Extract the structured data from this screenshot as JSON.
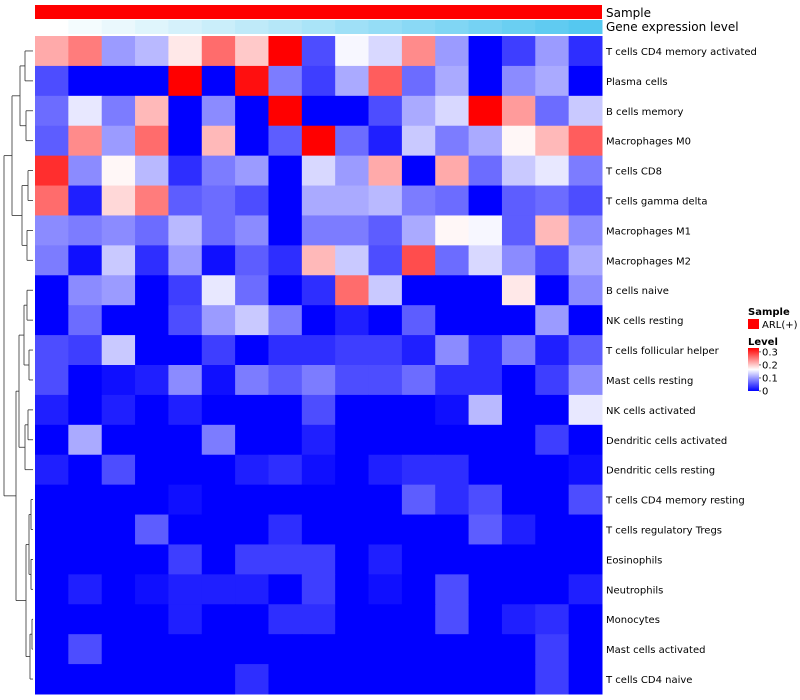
{
  "chart_data": {
    "type": "heatmap",
    "title": "",
    "xlabel": "",
    "ylabel": "",
    "annotations": {
      "sample_track": {
        "label": "Sample",
        "color": "#ff0000"
      },
      "expression_track": {
        "label": "Gene expression level",
        "gradient": [
          "#ffffff",
          "#55c8f0"
        ]
      }
    },
    "rows": [
      "T cells CD4 memory activated",
      "Plasma cells",
      "B cells memory",
      "Macrophages M0",
      "T cells CD8",
      "T cells gamma delta",
      "Macrophages M1",
      "Macrophages M2",
      "B cells naive",
      "NK cells resting",
      "T cells follicular helper",
      "Mast cells resting",
      "NK cells activated",
      "Dendritic cells activated",
      "Dendritic cells resting",
      "T cells CD4 memory resting",
      "T cells regulatory  Tregs",
      "Eosinophils",
      "Neutrophils",
      "Monocytes",
      "Mast cells activated",
      "T cells CD4 naive"
    ],
    "values": [
      [
        0.22,
        0.25,
        0.1,
        0.12,
        0.18,
        0.26,
        0.2,
        0.33,
        0.05,
        0.16,
        0.14,
        0.24,
        0.1,
        0.0,
        0.04,
        0.1,
        0.03
      ],
      [
        0.05,
        0.0,
        0.0,
        0.0,
        0.33,
        0.0,
        0.32,
        0.08,
        0.04,
        0.11,
        0.27,
        0.07,
        0.11,
        0.0,
        0.09,
        0.11,
        0.0
      ],
      [
        0.07,
        0.15,
        0.08,
        0.21,
        0.0,
        0.09,
        0.0,
        0.33,
        0.0,
        0.0,
        0.05,
        0.11,
        0.14,
        0.33,
        0.23,
        0.07,
        0.13
      ],
      [
        0.06,
        0.24,
        0.1,
        0.26,
        0.0,
        0.21,
        0.0,
        0.06,
        0.33,
        0.07,
        0.02,
        0.13,
        0.08,
        0.11,
        0.17,
        0.21,
        0.27
      ],
      [
        0.3,
        0.09,
        0.17,
        0.12,
        0.03,
        0.08,
        0.1,
        0.0,
        0.14,
        0.1,
        0.22,
        0.0,
        0.22,
        0.07,
        0.13,
        0.15,
        0.08
      ],
      [
        0.26,
        0.02,
        0.19,
        0.25,
        0.06,
        0.07,
        0.05,
        0.0,
        0.11,
        0.11,
        0.12,
        0.08,
        0.07,
        0.0,
        0.06,
        0.07,
        0.05
      ],
      [
        0.09,
        0.08,
        0.09,
        0.07,
        0.12,
        0.07,
        0.09,
        0.0,
        0.08,
        0.08,
        0.06,
        0.11,
        0.17,
        0.16,
        0.06,
        0.21,
        0.09
      ],
      [
        0.08,
        0.01,
        0.13,
        0.03,
        0.1,
        0.01,
        0.06,
        0.03,
        0.21,
        0.13,
        0.05,
        0.28,
        0.07,
        0.14,
        0.09,
        0.05,
        0.11
      ],
      [
        0.0,
        0.09,
        0.1,
        0.0,
        0.04,
        0.15,
        0.07,
        0.0,
        0.03,
        0.26,
        0.13,
        0.0,
        0.0,
        0.0,
        0.18,
        0.0,
        0.09
      ],
      [
        0.0,
        0.07,
        0.0,
        0.0,
        0.05,
        0.1,
        0.13,
        0.08,
        0.0,
        0.02,
        0.0,
        0.06,
        0.0,
        0.0,
        0.0,
        0.1,
        0.0
      ],
      [
        0.05,
        0.04,
        0.13,
        0.0,
        0.0,
        0.04,
        0.0,
        0.03,
        0.03,
        0.04,
        0.04,
        0.02,
        0.09,
        0.03,
        0.08,
        0.02,
        0.06
      ],
      [
        0.05,
        0.0,
        0.01,
        0.02,
        0.09,
        0.01,
        0.08,
        0.06,
        0.08,
        0.05,
        0.05,
        0.07,
        0.03,
        0.03,
        0.0,
        0.04,
        0.09
      ],
      [
        0.02,
        0.0,
        0.02,
        0.0,
        0.02,
        0.0,
        0.0,
        0.0,
        0.05,
        0.0,
        0.0,
        0.0,
        0.01,
        0.12,
        0.0,
        0.0,
        0.15
      ],
      [
        0.0,
        0.11,
        0.0,
        0.0,
        0.0,
        0.08,
        0.0,
        0.0,
        0.02,
        0.0,
        0.0,
        0.0,
        0.0,
        0.0,
        0.0,
        0.04,
        0.0
      ],
      [
        0.02,
        0.0,
        0.05,
        0.0,
        0.0,
        0.0,
        0.02,
        0.03,
        0.01,
        0.0,
        0.02,
        0.03,
        0.03,
        0.0,
        0.0,
        0.0,
        0.01
      ],
      [
        0.0,
        0.0,
        0.0,
        0.0,
        0.01,
        0.0,
        0.0,
        0.0,
        0.0,
        0.0,
        0.0,
        0.06,
        0.03,
        0.05,
        0.0,
        0.0,
        0.05
      ],
      [
        0.0,
        0.0,
        0.0,
        0.06,
        0.0,
        0.0,
        0.0,
        0.03,
        0.0,
        0.0,
        0.0,
        0.0,
        0.0,
        0.06,
        0.02,
        0.0,
        0.0
      ],
      [
        0.0,
        0.0,
        0.0,
        0.0,
        0.04,
        0.0,
        0.04,
        0.04,
        0.04,
        0.0,
        0.02,
        0.0,
        0.0,
        0.0,
        0.0,
        0.0,
        0.0
      ],
      [
        0.0,
        0.02,
        0.0,
        0.01,
        0.02,
        0.02,
        0.02,
        0.0,
        0.04,
        0.0,
        0.01,
        0.0,
        0.05,
        0.0,
        0.0,
        0.0,
        0.02
      ],
      [
        0.0,
        0.0,
        0.0,
        0.0,
        0.02,
        0.0,
        0.0,
        0.03,
        0.03,
        0.0,
        0.0,
        0.0,
        0.05,
        0.0,
        0.02,
        0.03,
        0.0
      ],
      [
        0.0,
        0.05,
        0.0,
        0.0,
        0.0,
        0.0,
        0.0,
        0.0,
        0.0,
        0.0,
        0.0,
        0.0,
        0.0,
        0.0,
        0.0,
        0.04,
        0.0
      ],
      [
        0.0,
        0.0,
        0.0,
        0.0,
        0.0,
        0.0,
        0.03,
        0.0,
        0.0,
        0.0,
        0.0,
        0.0,
        0.0,
        0.0,
        0.0,
        0.04,
        0.0
      ]
    ],
    "color_scale": {
      "low": "#0000ff",
      "mid": "#ffffff",
      "high": "#ff0000",
      "range": [
        0,
        0.33
      ]
    },
    "legend": {
      "placement": "right",
      "sample_title": "Sample",
      "sample_entry": "ARL(+)",
      "level_title": "Level",
      "level_ticks": [
        "0.3",
        "0.2",
        "0.1",
        "0"
      ],
      "level_tick_values": [
        0.3,
        0.2,
        0.1,
        0
      ]
    }
  }
}
